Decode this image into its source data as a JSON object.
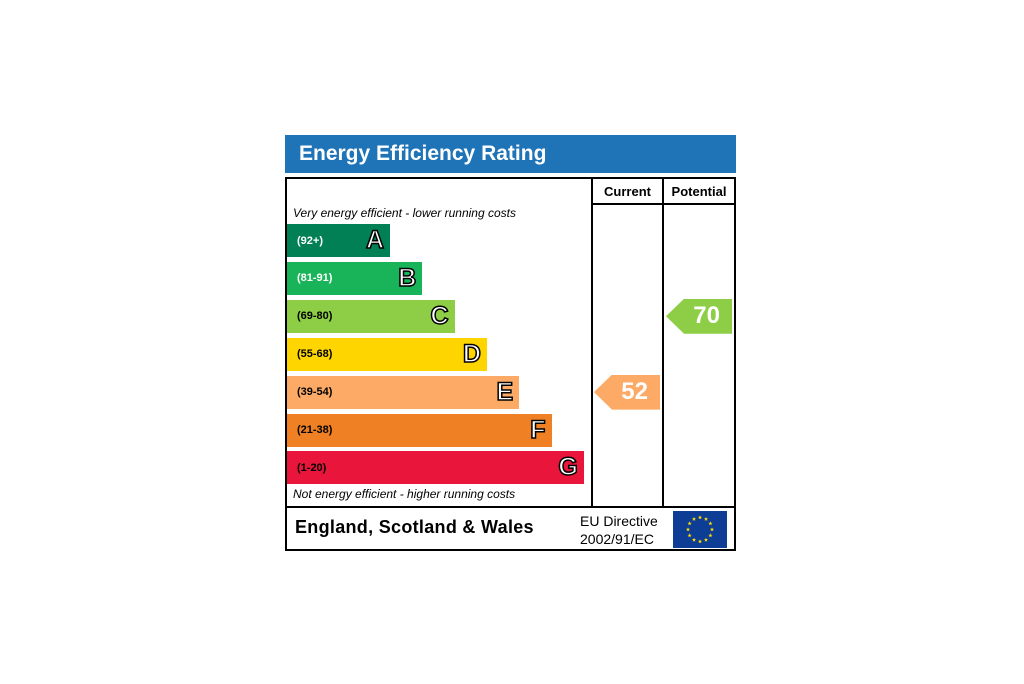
{
  "title": "Energy Efficiency Rating",
  "columns": {
    "current": "Current",
    "potential": "Potential"
  },
  "notes": {
    "top": "Very energy efficient - lower running costs",
    "bottom": "Not energy efficient - higher running costs"
  },
  "footer": {
    "country": "England, Scotland & Wales",
    "directive_line1": "EU Directive",
    "directive_line2": "2002/91/EC"
  },
  "colors": {
    "header": "#1f73b7",
    "flag": "#0e3d96",
    "stars": "#ffdd00"
  },
  "chart_data": {
    "type": "bar",
    "categories": [
      "A",
      "B",
      "C",
      "D",
      "E",
      "F",
      "G"
    ],
    "bands": [
      {
        "letter": "A",
        "range": "(92+)",
        "min": 92,
        "max": 100,
        "color": "#008054",
        "range_color": "#ffffff"
      },
      {
        "letter": "B",
        "range": "(81-91)",
        "min": 81,
        "max": 91,
        "color": "#19b459",
        "range_color": "#ffffff"
      },
      {
        "letter": "C",
        "range": "(69-80)",
        "min": 69,
        "max": 80,
        "color": "#8dce46",
        "range_color": "#000000"
      },
      {
        "letter": "D",
        "range": "(55-68)",
        "min": 55,
        "max": 68,
        "color": "#ffd500",
        "range_color": "#000000"
      },
      {
        "letter": "E",
        "range": "(39-54)",
        "min": 39,
        "max": 54,
        "color": "#fcaa65",
        "range_color": "#000000"
      },
      {
        "letter": "F",
        "range": "(21-38)",
        "min": 21,
        "max": 38,
        "color": "#ef8023",
        "range_color": "#000000"
      },
      {
        "letter": "G",
        "range": "(1-20)",
        "min": 1,
        "max": 20,
        "color": "#e9153b",
        "range_color": "#000000"
      }
    ],
    "current": {
      "value": 52,
      "band": "E",
      "color": "#fcaa65"
    },
    "potential": {
      "value": 70,
      "band": "C",
      "color": "#8dce46"
    }
  }
}
